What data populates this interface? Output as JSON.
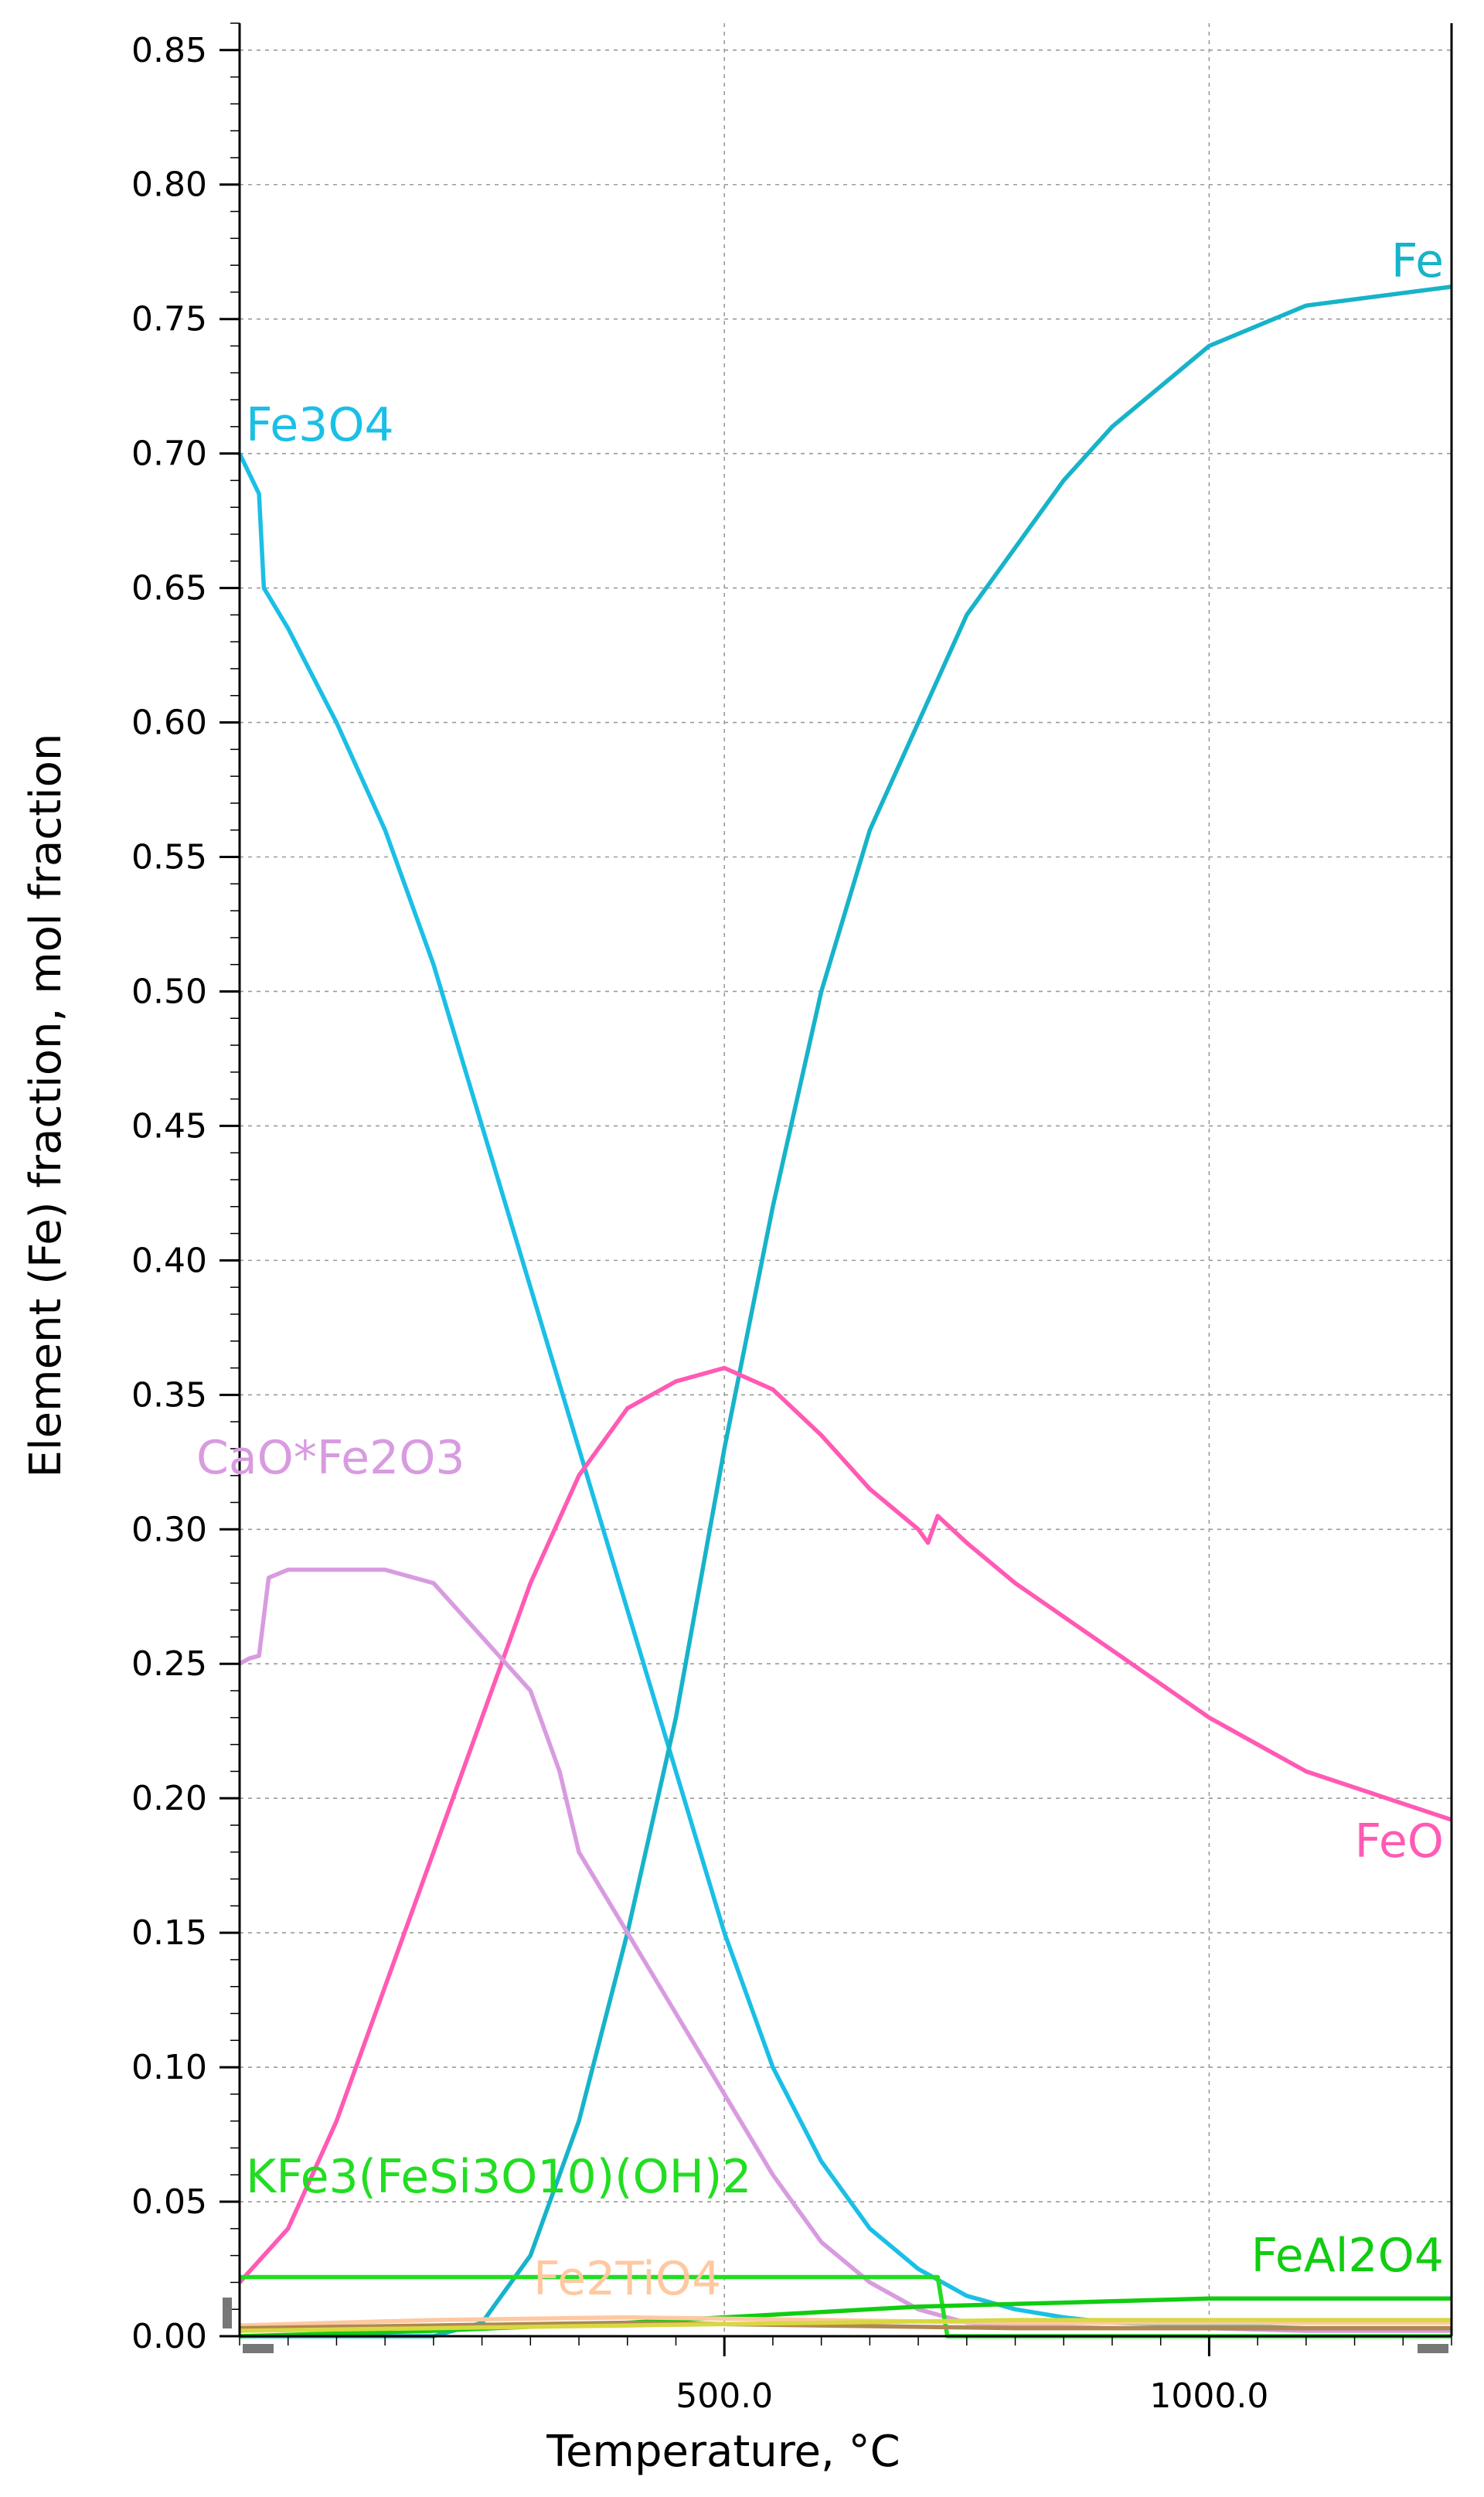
{
  "chart_data": {
    "type": "line",
    "xlabel": "Temperature, °C",
    "ylabel": "Element (Fe) fraction, mol fraction",
    "xlim": [
      0,
      1250
    ],
    "ylim": [
      0,
      0.86
    ],
    "x_ticks": [
      500,
      1000
    ],
    "x_tick_labels": [
      "500.0",
      "1000.0"
    ],
    "y_ticks": [
      0,
      0.05,
      0.1,
      0.15,
      0.2,
      0.25,
      0.3,
      0.35,
      0.4,
      0.45,
      0.5,
      0.55,
      0.6,
      0.65,
      0.7,
      0.75,
      0.8,
      0.85
    ],
    "y_tick_labels": [
      "0.00",
      "0.05",
      "0.10",
      "0.15",
      "0.20",
      "0.25",
      "0.30",
      "0.35",
      "0.40",
      "0.45",
      "0.50",
      "0.55",
      "0.60",
      "0.65",
      "0.70",
      "0.75",
      "0.80",
      "0.85"
    ],
    "grid": true,
    "series": [
      {
        "name": "Fe3O4",
        "color": "#1bbfe6",
        "x": [
          0,
          20,
          25,
          50,
          100,
          150,
          200,
          250,
          300,
          350,
          400,
          450,
          500,
          550,
          600,
          650,
          700,
          750,
          800,
          850,
          900,
          1000,
          1100,
          1250
        ],
        "y": [
          0.7,
          0.685,
          0.65,
          0.635,
          0.6,
          0.56,
          0.51,
          0.45,
          0.39,
          0.33,
          0.27,
          0.21,
          0.15,
          0.1,
          0.065,
          0.04,
          0.025,
          0.015,
          0.01,
          0.007,
          0.005,
          0.004,
          0.003,
          0.003
        ]
      },
      {
        "name": "Fe",
        "color": "#17b3c9",
        "x": [
          0,
          100,
          150,
          200,
          250,
          300,
          350,
          400,
          450,
          500,
          550,
          600,
          650,
          700,
          750,
          800,
          850,
          900,
          1000,
          1100,
          1250
        ],
        "y": [
          0.0,
          0.0,
          0.0,
          0.0,
          0.005,
          0.03,
          0.08,
          0.15,
          0.23,
          0.33,
          0.42,
          0.5,
          0.56,
          0.6,
          0.64,
          0.665,
          0.69,
          0.71,
          0.74,
          0.755,
          0.762
        ]
      },
      {
        "name": "FeO",
        "color": "#ff5ab4",
        "x": [
          0,
          50,
          100,
          150,
          200,
          250,
          300,
          350,
          400,
          450,
          500,
          550,
          600,
          650,
          700,
          710,
          720,
          750,
          800,
          900,
          1000,
          1100,
          1250
        ],
        "y": [
          0.02,
          0.04,
          0.08,
          0.13,
          0.18,
          0.23,
          0.28,
          0.32,
          0.345,
          0.355,
          0.36,
          0.352,
          0.335,
          0.315,
          0.3,
          0.295,
          0.305,
          0.295,
          0.28,
          0.255,
          0.23,
          0.21,
          0.192
        ]
      },
      {
        "name": "CaO*Fe2O3",
        "color": "#d89be0",
        "x": [
          0,
          10,
          20,
          30,
          50,
          100,
          150,
          200,
          250,
          300,
          330,
          350,
          400,
          450,
          500,
          550,
          600,
          650,
          700,
          750,
          800,
          900,
          1000,
          1100,
          1250
        ],
        "y": [
          0.25,
          0.252,
          0.253,
          0.282,
          0.285,
          0.285,
          0.285,
          0.28,
          0.26,
          0.24,
          0.21,
          0.18,
          0.15,
          0.12,
          0.09,
          0.06,
          0.035,
          0.02,
          0.01,
          0.005,
          0.004,
          0.003,
          0.003,
          0.002,
          0.002
        ]
      },
      {
        "name": "KFe3(FeSi3O10)(OH)2",
        "color": "#22dd22",
        "x": [
          0,
          700,
          705,
          720,
          730,
          1250
        ],
        "y": [
          0.022,
          0.022,
          0.022,
          0.022,
          0.0,
          0.0
        ]
      },
      {
        "name": "FeAl2O4",
        "color": "#11cc11",
        "x": [
          0,
          200,
          400,
          500,
          600,
          700,
          800,
          900,
          1000,
          1100,
          1250
        ],
        "y": [
          0.0,
          0.002,
          0.005,
          0.007,
          0.009,
          0.011,
          0.012,
          0.013,
          0.014,
          0.014,
          0.014
        ]
      },
      {
        "name": "Fe2TiO4",
        "color": "#ffc8a0",
        "x": [
          0,
          200,
          400,
          600,
          800,
          1000,
          1250
        ],
        "y": [
          0.004,
          0.006,
          0.007,
          0.006,
          0.005,
          0.005,
          0.005
        ]
      },
      {
        "name": "",
        "color": "#b08850",
        "x": [
          0,
          200,
          400,
          600,
          800,
          1000,
          1250
        ],
        "y": [
          0.003,
          0.004,
          0.005,
          0.004,
          0.003,
          0.003,
          0.003
        ]
      },
      {
        "name": "",
        "color": "#d8d840",
        "x": [
          0,
          200,
          400,
          600,
          800,
          1000,
          1250
        ],
        "y": [
          0.002,
          0.003,
          0.004,
          0.005,
          0.006,
          0.006,
          0.006
        ]
      }
    ],
    "annotations": [
      {
        "text": "Fe3O4",
        "color": "#1bbfe6"
      },
      {
        "text": "Fe",
        "color": "#17b3c9"
      },
      {
        "text": "CaO*Fe2O3",
        "color": "#d89be0"
      },
      {
        "text": "FeO",
        "color": "#ff5ab4"
      },
      {
        "text": "KFe3(FeSi3O10)(OH)2",
        "color": "#22dd22"
      },
      {
        "text": "FeAl2O4",
        "color": "#11cc11"
      },
      {
        "text": "Fe2TiO4",
        "color": "#ffc8a0"
      }
    ]
  }
}
